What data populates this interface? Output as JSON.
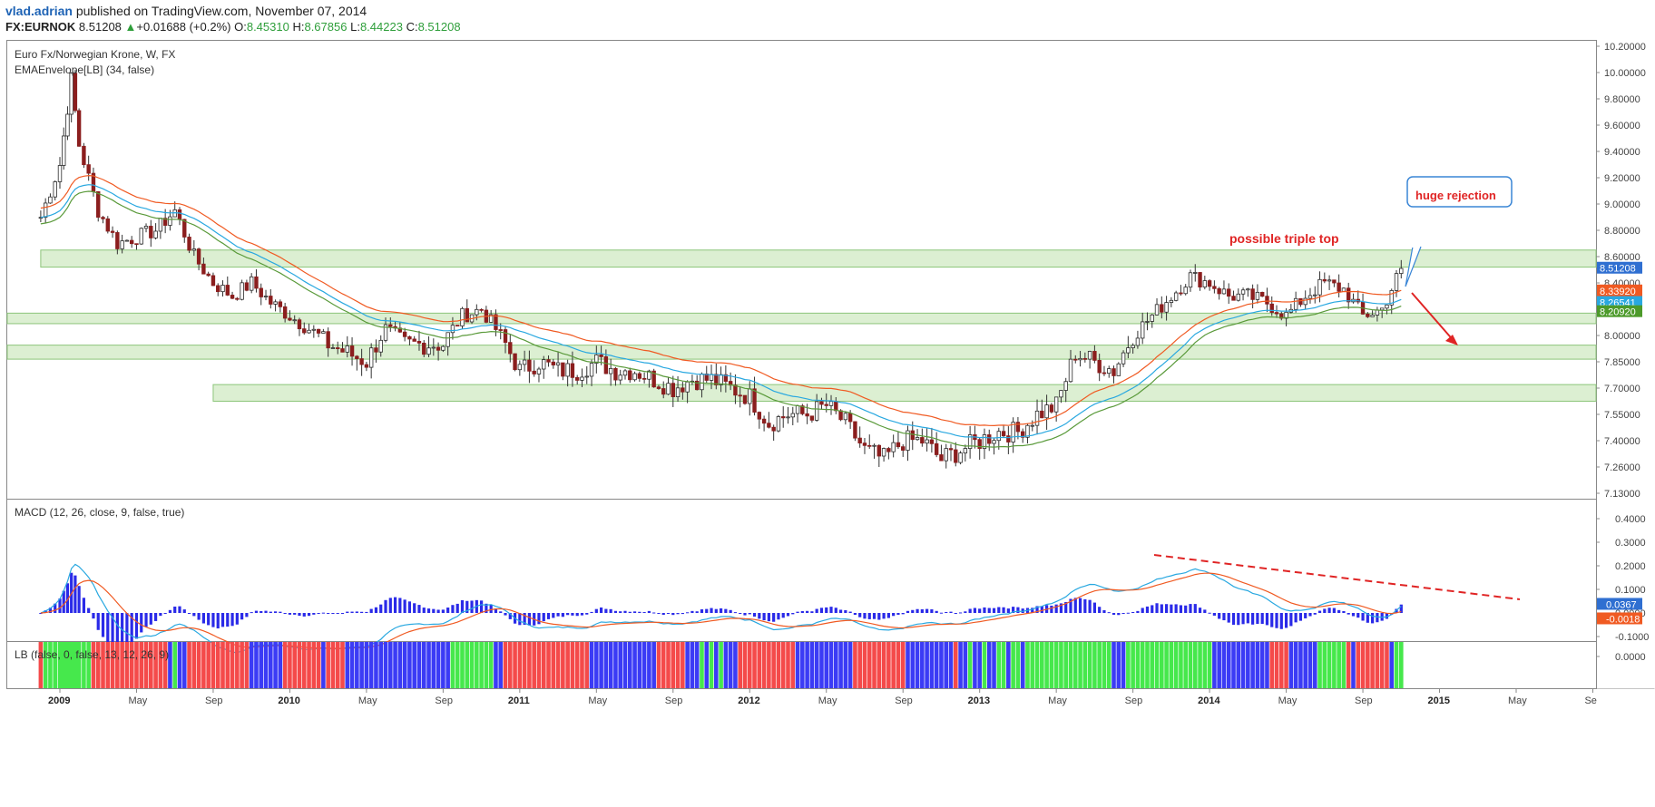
{
  "header": {
    "user": "vlad.adrian",
    "published": "published on TradingView.com, November 07, 2014",
    "symbol": "FX:EURNOK",
    "last": "8.51208",
    "change_arrow": "▲",
    "change": "+0.01688 (+0.2%)",
    "o_label": "O:",
    "o": "8.45310",
    "h_label": "H:",
    "h": "8.67856",
    "l_label": "L:",
    "l": "8.44223",
    "c_label": "C:",
    "c": "8.51208"
  },
  "chart_data": [
    {
      "type": "candlestick",
      "title": "Euro Fx/Norwegian Krone, W, FX",
      "indicator": "EMAEnvelope[LB] (34, false)",
      "ylim": [
        7.13,
        10.2
      ],
      "y_ticks": [
        "10.20000",
        "10.00000",
        "9.80000",
        "9.60000",
        "9.40000",
        "9.20000",
        "9.00000",
        "8.80000",
        "8.60000",
        "8.40000",
        "8.20000",
        "8.00000",
        "7.85000",
        "7.70000",
        "7.55000",
        "7.40000",
        "7.26000",
        "7.13000"
      ],
      "x_ticks": [
        "2009",
        "May",
        "Sep",
        "2010",
        "May",
        "Sep",
        "2011",
        "May",
        "Sep",
        "2012",
        "May",
        "Sep",
        "2013",
        "May",
        "Sep",
        "2014",
        "May",
        "Sep",
        "2015",
        "May",
        "Se"
      ],
      "price_labels": [
        {
          "value": "8.51208",
          "color": "#2f6fd1"
        },
        {
          "value": "8.33920",
          "color": "#f05a22"
        },
        {
          "value": "8.26541",
          "color": "#29a8e0"
        },
        {
          "value": "8.20920",
          "color": "#4c9a2a"
        }
      ],
      "close_path": [
        [
          "2008-12",
          8.9
        ],
        [
          "2009-01",
          9.3
        ],
        [
          "2009-01b",
          9.95
        ],
        [
          "2009-02",
          9.45
        ],
        [
          "2009-03",
          8.95
        ],
        [
          "2009-04",
          8.7
        ],
        [
          "2009-05",
          8.75
        ],
        [
          "2009-06",
          8.8
        ],
        [
          "2009-07",
          8.95
        ],
        [
          "2009-08",
          8.6
        ],
        [
          "2009-09",
          8.4
        ],
        [
          "2009-10",
          8.3
        ],
        [
          "2009-11",
          8.4
        ],
        [
          "2009-12",
          8.25
        ],
        [
          "2010-01",
          8.15
        ],
        [
          "2010-02",
          8.05
        ],
        [
          "2010-03",
          7.95
        ],
        [
          "2010-04",
          7.9
        ],
        [
          "2010-05",
          7.85
        ],
        [
          "2010-06",
          8.05
        ],
        [
          "2010-07",
          7.95
        ],
        [
          "2010-08",
          7.95
        ],
        [
          "2010-09",
          7.95
        ],
        [
          "2010-10",
          8.15
        ],
        [
          "2010-11",
          8.2
        ],
        [
          "2010-12",
          8.0
        ],
        [
          "2011-01",
          7.8
        ],
        [
          "2011-02",
          7.85
        ],
        [
          "2011-03",
          7.8
        ],
        [
          "2011-04",
          7.8
        ],
        [
          "2011-05",
          7.85
        ],
        [
          "2011-06",
          7.8
        ],
        [
          "2011-07",
          7.8
        ],
        [
          "2011-08",
          7.75
        ],
        [
          "2011-09",
          7.7
        ],
        [
          "2011-10",
          7.75
        ],
        [
          "2011-11",
          7.75
        ],
        [
          "2011-12",
          7.7
        ],
        [
          "2012-01",
          7.65
        ],
        [
          "2012-02",
          7.5
        ],
        [
          "2012-03",
          7.55
        ],
        [
          "2012-04",
          7.55
        ],
        [
          "2012-05",
          7.6
        ],
        [
          "2012-06",
          7.5
        ],
        [
          "2012-07",
          7.35
        ],
        [
          "2012-08",
          7.3
        ],
        [
          "2012-09",
          7.4
        ],
        [
          "2012-10",
          7.4
        ],
        [
          "2012-11",
          7.3
        ],
        [
          "2012-12",
          7.35
        ],
        [
          "2013-01",
          7.4
        ],
        [
          "2013-02",
          7.45
        ],
        [
          "2013-03",
          7.45
        ],
        [
          "2013-04",
          7.55
        ],
        [
          "2013-05",
          7.6
        ],
        [
          "2013-06",
          7.9
        ],
        [
          "2013-07",
          7.85
        ],
        [
          "2013-08",
          7.8
        ],
        [
          "2013-09",
          8.0
        ],
        [
          "2013-10",
          8.15
        ],
        [
          "2013-11",
          8.3
        ],
        [
          "2013-12",
          8.45
        ],
        [
          "2014-01",
          8.4
        ],
        [
          "2014-02",
          8.3
        ],
        [
          "2014-03",
          8.3
        ],
        [
          "2014-04",
          8.25
        ],
        [
          "2014-05",
          8.15
        ],
        [
          "2014-06",
          8.3
        ],
        [
          "2014-07",
          8.4
        ],
        [
          "2014-08",
          8.35
        ],
        [
          "2014-09",
          8.15
        ],
        [
          "2014-10",
          8.2
        ],
        [
          "2014-11",
          8.51
        ]
      ],
      "zones": [
        {
          "from": 8.52,
          "to": 8.65,
          "start": "2008-12"
        },
        {
          "from": 8.09,
          "to": 8.17,
          "start": "2008-10"
        },
        {
          "from": 7.865,
          "to": 7.945,
          "start": "2008-10"
        },
        {
          "from": 7.625,
          "to": 7.72,
          "start": "2009-09"
        }
      ],
      "annotations": [
        "possible triple top",
        "huge rejection"
      ]
    },
    {
      "type": "line",
      "title": "MACD (12, 26, close, 9, false, true)",
      "ylim": [
        -0.15,
        0.45
      ],
      "y_ticks": [
        "0.4000",
        "0.3000",
        "0.2000",
        "0.1000",
        "0.0000",
        "-0.1000"
      ],
      "price_labels": [
        {
          "value": "0.0367",
          "color": "#2f6fd1"
        },
        {
          "value": "-0.0018",
          "color": "#f05a22"
        }
      ]
    },
    {
      "type": "heatmap",
      "title": "LB (false, 0, false, 13, 12, 26, 9)",
      "y_ticks": [
        "0.0000"
      ],
      "colors": {
        "red": "#f44a4a",
        "green": "#46e84c",
        "blue": "#3b3bf5"
      }
    }
  ]
}
